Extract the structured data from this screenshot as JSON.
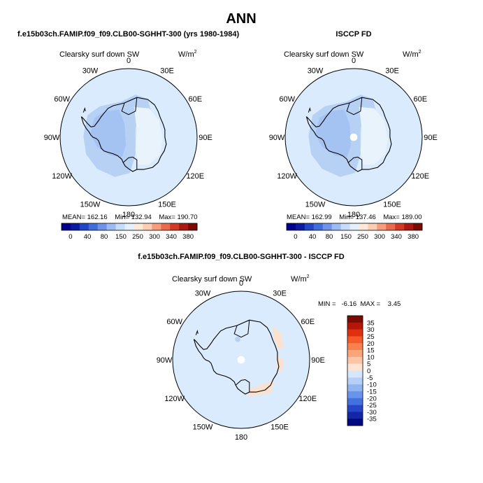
{
  "main_title": "ANN",
  "colors": {
    "ocean": "#d9ebfd",
    "land_light": "#e8f3fc",
    "band_mid": "#b7d1f5",
    "band_dark": "#a4c2f2",
    "pos_light": "#fbe2cf",
    "pos_med": "#f8c7a6",
    "coast": "#000000"
  },
  "panels": [
    {
      "title": "f.e15b03ch.FAMIP.f09_f09.CLB00-SGHHT-300 (yrs 1980-1984)",
      "field_label": "Clearsky surf down SW",
      "units_label": "W/m",
      "units_exp": "2",
      "stats": "MEAN= 162.16    Min= 132.94    Max= 190.70"
    },
    {
      "title": "ISCCP FD",
      "field_label": "Clearsky surf down SW",
      "units_label": "W/m",
      "units_exp": "2",
      "stats": "MEAN= 162.99    Min= 137.46    Max= 189.00"
    },
    {
      "title": "f.e15b03ch.FAMIP.f09_f09.CLB00-SGHHT-300 - ISCCP FD",
      "field_label": "Clearsky surf down SW",
      "units_label": "W/m",
      "units_exp": "2",
      "stats": "MIN =   -6.16  MAX =    3.45"
    }
  ],
  "lon_labels": [
    "0",
    "30E",
    "60E",
    "90E",
    "120E",
    "150E",
    "180",
    "150W",
    "120W",
    "90W",
    "60W",
    "30W"
  ],
  "chart_data": [
    {
      "type": "heatmap",
      "projection": "south-polar-stereographic",
      "title": "f.e15b03ch.FAMIP.f09_f09.CLB00-SGHHT-300 (yrs 1980-1984)",
      "variable": "Clearsky surf down SW",
      "units": "W/m2",
      "mean": 162.16,
      "min": 132.94,
      "max": 190.7,
      "colorbar": {
        "ticks": [
          "0",
          "40",
          "80",
          "150",
          "250",
          "300",
          "340",
          "380"
        ],
        "colors": [
          "#00008f",
          "#0c1aa0",
          "#2347c4",
          "#3f6ed8",
          "#6e93e8",
          "#9dbbf3",
          "#c6dcfa",
          "#e4f0fc",
          "#fde8da",
          "#fbcdb2",
          "#f59d7c",
          "#ea6a4d",
          "#d23a26",
          "#aa1a10",
          "#7a0a04"
        ]
      }
    },
    {
      "type": "heatmap",
      "projection": "south-polar-stereographic",
      "title": "ISCCP FD",
      "variable": "Clearsky surf down SW",
      "units": "W/m2",
      "mean": 162.99,
      "min": 137.46,
      "max": 189.0,
      "colorbar": {
        "ticks": [
          "0",
          "40",
          "80",
          "150",
          "250",
          "300",
          "340",
          "380"
        ],
        "colors": [
          "#00008f",
          "#0c1aa0",
          "#2347c4",
          "#3f6ed8",
          "#6e93e8",
          "#9dbbf3",
          "#c6dcfa",
          "#e4f0fc",
          "#fde8da",
          "#fbcdb2",
          "#f59d7c",
          "#ea6a4d",
          "#d23a26",
          "#aa1a10",
          "#7a0a04"
        ]
      }
    },
    {
      "type": "heatmap",
      "projection": "south-polar-stereographic",
      "title": "f.e15b03ch.FAMIP.f09_f09.CLB00-SGHHT-300 - ISCCP FD",
      "variable": "Clearsky surf down SW",
      "units": "W/m2",
      "min": -6.16,
      "max": 3.45,
      "colorbar": {
        "orientation": "vertical",
        "ticks": [
          "35",
          "30",
          "25",
          "20",
          "15",
          "10",
          "5",
          "0",
          "-5",
          "-10",
          "-15",
          "-20",
          "-25",
          "-30",
          "-35"
        ],
        "colors": [
          "#7a0a04",
          "#b51608",
          "#e0300f",
          "#f45a2a",
          "#f8814e",
          "#fba47a",
          "#fcc6a6",
          "#fde4d2",
          "#d6e7fc",
          "#b5d0f8",
          "#8fb4f3",
          "#6a94ec",
          "#4570e0",
          "#2546c8",
          "#1426a8",
          "#000a80"
        ]
      }
    }
  ]
}
